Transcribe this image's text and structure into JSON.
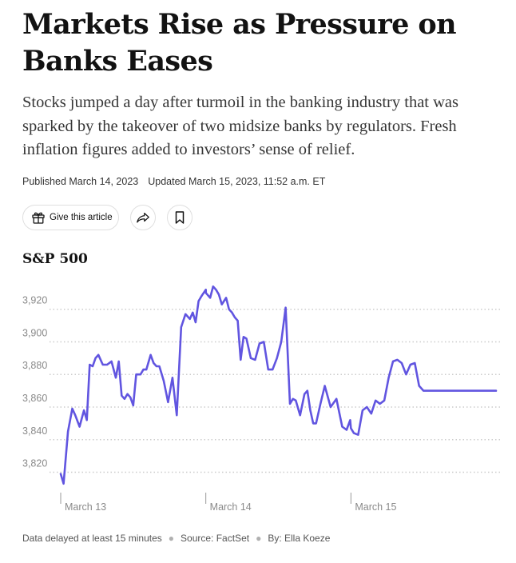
{
  "article": {
    "headline": "Markets Rise as Pressure on Banks Eases",
    "summary": "Stocks jumped a day after turmoil in the banking industry that was sparked by the takeover of two midsize banks by regulators. Fresh inflation figures added to investors’ sense of relief.",
    "published": "Published March 14, 2023",
    "updated": "Updated March 15, 2023, 11:52 a.m. ET"
  },
  "actions": {
    "gift_label": "Give this article",
    "gift_icon": "gift-icon",
    "share_icon": "share-arrow-icon",
    "save_icon": "bookmark-icon"
  },
  "chart_data": {
    "type": "line",
    "title": "S&P 500",
    "xlabel": "",
    "ylabel": "",
    "ylim": [
      3808,
      3938
    ],
    "yticks": [
      3820,
      3840,
      3860,
      3880,
      3900,
      3920
    ],
    "ytick_labels": [
      "3,820",
      "3,840",
      "3,860",
      "3,880",
      "3,900",
      "3,920"
    ],
    "xticks": [
      0,
      1,
      2
    ],
    "xtick_labels": [
      "March 13",
      "March 14",
      "March 15"
    ],
    "xlim": [
      0,
      3
    ],
    "grid": true,
    "color": "#6155e0",
    "series": [
      {
        "x": [
          0.0,
          0.02,
          0.05,
          0.08,
          0.1,
          0.13,
          0.16,
          0.18,
          0.2,
          0.22,
          0.24,
          0.26,
          0.29,
          0.32,
          0.35,
          0.38,
          0.4,
          0.42,
          0.44,
          0.46,
          0.48,
          0.5,
          0.52,
          0.55,
          0.57,
          0.59,
          0.62,
          0.64,
          0.66,
          0.68,
          0.71,
          0.74,
          0.77,
          0.8,
          0.83,
          0.86,
          0.89,
          0.91,
          0.93,
          0.95,
          0.97,
          1.0,
          1.001,
          1.03,
          1.05,
          1.07,
          1.09,
          1.11,
          1.14,
          1.16,
          1.18,
          1.2,
          1.22,
          1.24,
          1.26,
          1.28,
          1.31,
          1.34,
          1.37,
          1.4,
          1.43,
          1.46,
          1.49,
          1.52,
          1.55,
          1.58,
          1.6,
          1.62,
          1.65,
          1.68,
          1.7,
          1.72,
          1.74,
          1.76,
          1.79,
          1.82,
          1.86,
          1.9,
          1.94,
          1.97,
          1.995,
          2.0,
          2.02,
          2.05,
          2.08,
          2.11,
          2.14,
          2.17,
          2.2,
          2.23,
          2.26,
          2.29,
          2.32,
          2.35,
          2.38,
          2.41,
          2.44,
          2.47,
          2.5,
          2.53,
          2.56,
          2.59,
          2.62,
          2.65,
          2.68,
          2.71,
          2.74,
          2.77,
          2.79,
          2.81,
          2.84,
          2.87,
          2.9,
          2.93,
          2.96,
          2.98,
          3.0
        ],
        "y": [
          3819,
          3813,
          3845,
          3859,
          3855,
          3848,
          3858,
          3852,
          3886,
          3885,
          3890,
          3892,
          3886,
          3886,
          3888,
          3878,
          3888,
          3867,
          3865,
          3868,
          3866,
          3861,
          3880,
          3880,
          3883,
          3883,
          3892,
          3887,
          3885,
          3885,
          3876,
          3863,
          3878,
          3855,
          3909,
          3917,
          3914,
          3918,
          3912,
          3925,
          3928,
          3932,
          3930,
          3927,
          3934,
          3932,
          3929,
          3923,
          3927,
          3920,
          3918,
          3915,
          3913,
          3889,
          3903,
          3902,
          3890,
          3889,
          3899,
          3900,
          3883,
          3883,
          3890,
          3900,
          3921,
          3862,
          3865,
          3864,
          3855,
          3868,
          3870,
          3858,
          3850,
          3850,
          3862,
          3873,
          3860,
          3865,
          3848,
          3846,
          3852,
          3847,
          3844,
          3843,
          3858,
          3860,
          3856,
          3864,
          3862,
          3864,
          3878,
          3888,
          3889,
          3887,
          3880,
          3886,
          3887,
          3873,
          3870,
          3870,
          3870,
          3870,
          3870,
          3870,
          3870,
          3870,
          3870,
          3870,
          3870,
          3870,
          3870,
          3870,
          3870,
          3870,
          3870,
          3870,
          3870
        ]
      }
    ]
  },
  "footer": {
    "delay_note": "Data delayed at least 15 minutes",
    "source": "Source: FactSet",
    "byline": "By: Ella Koeze"
  }
}
